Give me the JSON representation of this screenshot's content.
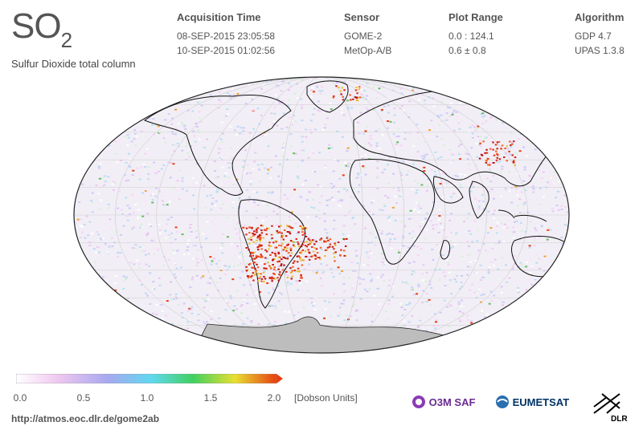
{
  "header": {
    "species_main": "SO",
    "species_sub": "2",
    "subtitle": "Sulfur Dioxide total column",
    "columns": [
      {
        "title": "Acquisition Time",
        "lines": [
          "08-SEP-2015 23:05:58",
          "10-SEP-2015 01:02:56"
        ]
      },
      {
        "title": "Sensor",
        "lines": [
          "GOME-2",
          "MetOp-A/B"
        ]
      },
      {
        "title": "Plot Range",
        "lines": [
          "0.0 : 124.1",
          "0.6 ± 0.8"
        ]
      },
      {
        "title": "Algorithm",
        "lines": [
          "GDP 4.7",
          "UPAS 1.3.8"
        ]
      }
    ]
  },
  "colorbar": {
    "ticks": [
      "0.0",
      "0.5",
      "1.0",
      "1.5",
      "2.0"
    ],
    "units": "[Dobson Units]",
    "colors": [
      "#ffffff",
      "#f0c8f0",
      "#a8a8f0",
      "#60d8f0",
      "#40d060",
      "#e8e030",
      "#e84010"
    ]
  },
  "footer": {
    "url": "http://atmos.eoc.dlr.de/gome2ab",
    "logos": {
      "o3msaf": "O3M SAF",
      "eumetsat": "EUMETSAT",
      "dlr": "DLR"
    }
  },
  "map": {
    "projection": "mollweide",
    "background_color": "#f2eef6",
    "land_no_data_color": "#bdbdbd"
  }
}
